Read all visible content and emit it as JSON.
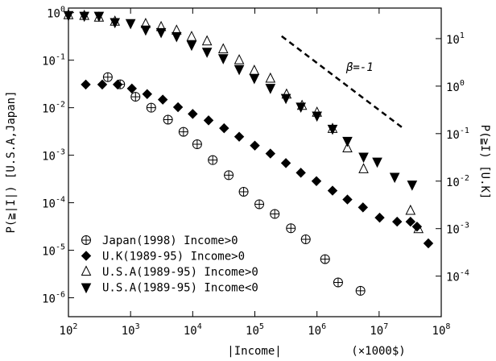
{
  "chart_data": {
    "type": "scatter",
    "xlabel": "|Income|",
    "xunit_label": "(×1000$)",
    "ylabel": "P(≧|I|) [U.S.A,Japan]",
    "y2label": "P(≧I) [U.K]",
    "log_x": true,
    "log_y": true,
    "log_y2": true,
    "legend": "lower left",
    "xlim": [
      100,
      100000000
    ],
    "ylim": [
      4e-07,
      1.25
    ],
    "y2lim": [
      1.4e-05,
      44
    ],
    "xticks": [
      {
        "value": 100,
        "label": "10^2"
      },
      {
        "value": 1000,
        "label": "10^3"
      },
      {
        "value": 10000,
        "label": "10^4"
      },
      {
        "value": 100000,
        "label": "10^5"
      },
      {
        "value": 1000000,
        "label": "10^6"
      },
      {
        "value": 10000000,
        "label": "10^7"
      },
      {
        "value": 100000000,
        "label": "10^8"
      }
    ],
    "yticks": [
      {
        "value": 1e-06,
        "label": "10^-6"
      },
      {
        "value": 1e-05,
        "label": "10^-5"
      },
      {
        "value": 0.0001,
        "label": "10^-4"
      },
      {
        "value": 0.001,
        "label": "10^-3"
      },
      {
        "value": 0.01,
        "label": "10^-2"
      },
      {
        "value": 0.1,
        "label": "10^-1"
      },
      {
        "value": 1,
        "label": "10^0"
      }
    ],
    "y2ticks": [
      {
        "value": 0.0001,
        "label": "10^-4"
      },
      {
        "value": 0.001,
        "label": "10^-3"
      },
      {
        "value": 0.01,
        "label": "10^-2"
      },
      {
        "value": 0.1,
        "label": "10^-1"
      },
      {
        "value": 1,
        "label": "10^0"
      },
      {
        "value": 10,
        "label": "10^1"
      }
    ],
    "series": [
      {
        "name": "Japan(1998) Income>0",
        "color": "#000000",
        "marker": "circle-plus",
        "x": [
          430,
          680,
          1200,
          2150,
          4000,
          7100,
          11800,
          21000,
          38000,
          66000,
          118000,
          209000,
          380000,
          660000,
          1350000,
          2190000,
          5010000
        ],
        "values": [
          0.044,
          0.031,
          0.017,
          0.01,
          0.0056,
          0.0031,
          0.0017,
          0.00079,
          0.00038,
          0.00017,
          9.3e-05,
          5.8e-05,
          2.9e-05,
          1.7e-05,
          6.5e-06,
          2.1e-06,
          1.4e-06
        ]
      },
      {
        "name": "U.K(1989-95) Income>0",
        "color": "#000000",
        "marker": "diamond",
        "axis": "y2",
        "x": [
          190,
          350,
          620,
          1050,
          1850,
          3300,
          5800,
          10000,
          18000,
          32000,
          56000,
          100000,
          178000,
          316000,
          550000,
          980000,
          1780000,
          3090000,
          5500000,
          10200000,
          19500000,
          32000000,
          40700000,
          62000000
        ],
        "values": [
          1.08,
          1.08,
          1.08,
          0.89,
          0.68,
          0.52,
          0.36,
          0.26,
          0.19,
          0.13,
          0.086,
          0.056,
          0.038,
          0.024,
          0.015,
          0.01,
          0.0063,
          0.0041,
          0.0028,
          0.0017,
          0.0014,
          0.0014,
          0.0011,
          0.00049
        ]
      },
      {
        "name": "U.S.A(1989-95) Income>0",
        "color": "#000000",
        "marker": "triangle-up",
        "x": [
          100,
          180,
          310,
          560,
          1750,
          3100,
          5500,
          9600,
          17000,
          31000,
          56000,
          98000,
          178000,
          324000,
          575000,
          1000000,
          1780000,
          3090000,
          5620000,
          32000000,
          43000000
        ],
        "values": [
          0.89,
          0.86,
          0.79,
          0.65,
          0.58,
          0.5,
          0.42,
          0.31,
          0.25,
          0.17,
          0.1,
          0.06,
          0.041,
          0.019,
          0.011,
          0.0079,
          0.0036,
          0.0014,
          0.00051,
          6.8e-05,
          2.8e-05
        ]
      },
      {
        "name": "U.S.A(1989-95) Income<0",
        "color": "#000000",
        "marker": "triangle-down",
        "x": [
          100,
          180,
          310,
          560,
          1000,
          1750,
          3100,
          5500,
          9600,
          17000,
          31000,
          56000,
          98000,
          178000,
          316000,
          550000,
          1000000,
          1780000,
          3090000,
          5620000,
          9330000,
          17800000,
          34000000
        ],
        "values": [
          0.89,
          0.86,
          0.86,
          0.63,
          0.6,
          0.44,
          0.39,
          0.32,
          0.21,
          0.15,
          0.11,
          0.065,
          0.042,
          0.026,
          0.016,
          0.0105,
          0.0068,
          0.0036,
          0.002,
          0.00093,
          0.00073,
          0.00035,
          0.00024
        ]
      }
    ],
    "reference_line": {
      "label": "β=-1",
      "x": [
        270000,
        25000000
      ],
      "y": [
        0.32,
        0.0036
      ]
    }
  }
}
